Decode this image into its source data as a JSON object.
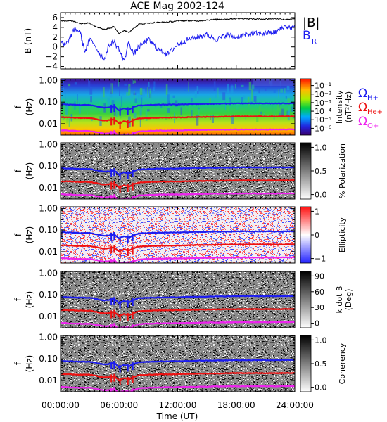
{
  "chart_data": {
    "type": "spectrogram",
    "title": "ACE Mag 2002-124",
    "xlabel": "Time (UT)",
    "x_ticks": [
      "00:00:00",
      "06:00:00",
      "12:00:00",
      "18:00:00",
      "24:00:00"
    ],
    "x_range_hours": [
      0,
      24
    ],
    "top_panel": {
      "type": "line",
      "ylabel": "B (nT)",
      "ylim": [
        -4.5,
        7
      ],
      "y_ticks": [
        "6",
        "4",
        "2",
        "0",
        "−2",
        "−4"
      ],
      "legend": [
        "|B|",
        "B",
        "R"
      ],
      "series": [
        {
          "name": "|B|",
          "color": "#000000",
          "x": [
            0,
            1,
            2,
            3,
            3.5,
            4,
            4.5,
            5,
            5.5,
            6,
            6.5,
            7,
            7.5,
            8,
            9,
            10,
            11,
            12,
            13,
            14,
            15,
            16,
            17,
            18,
            19,
            20,
            21,
            22,
            23,
            24
          ],
          "y": [
            5.3,
            5.4,
            4.8,
            4.9,
            4.3,
            3.9,
            3.6,
            3.8,
            4.2,
            2.6,
            3.4,
            3.0,
            3.8,
            4.6,
            4.9,
            5.0,
            5.1,
            5.3,
            5.4,
            5.3,
            5.5,
            5.6,
            5.7,
            5.8,
            5.8,
            5.7,
            5.7,
            5.8,
            5.6,
            5.8
          ]
        },
        {
          "name": "B_R",
          "color": "#1c1cf0",
          "x": [
            0,
            0.5,
            1,
            1.5,
            2,
            2.5,
            3,
            3.5,
            4,
            4.5,
            5,
            5.5,
            6,
            6.5,
            7,
            7.5,
            8,
            9,
            10,
            11,
            12,
            13,
            14,
            15,
            16,
            17,
            18,
            19,
            20,
            21,
            22,
            23,
            24
          ],
          "y": [
            1.0,
            0.2,
            2.0,
            3.8,
            3.0,
            -1.0,
            1.5,
            0.5,
            -1.5,
            -2.5,
            0.5,
            1.0,
            -0.5,
            -3.0,
            1.0,
            -1.5,
            0.0,
            1.5,
            -0.5,
            -1.5,
            0.5,
            1.5,
            2.0,
            2.5,
            1.5,
            2.5,
            2.0,
            2.5,
            2.7,
            2.8,
            3.0,
            4.2,
            3.8
          ]
        }
      ]
    },
    "spectral_panels": [
      {
        "name": "Intensity",
        "colorbar_title": "Intensity (nT²/Hz)",
        "colorbar_ticks": [
          "10⁻¹",
          "10⁻²",
          "10⁻³",
          "10⁻⁴",
          "10⁻⁵",
          "10⁻⁶"
        ],
        "colormap": "rainbow"
      },
      {
        "name": "% Polarization",
        "colorbar_title": "% Polarization",
        "colorbar_ticks": [
          "1.0",
          "0.5",
          "0.0"
        ],
        "colormap": "grayscale"
      },
      {
        "name": "Ellipticity",
        "colorbar_title": "Ellipticity",
        "colorbar_ticks": [
          "1",
          "0",
          "−1"
        ],
        "colormap": "blue-white-red"
      },
      {
        "name": "k dot B",
        "colorbar_title": "k dot B (Deg)",
        "colorbar_ticks": [
          "90",
          "60",
          "30",
          "0"
        ],
        "colormap": "grayscale"
      },
      {
        "name": "Coherency",
        "colorbar_title": "Coherency",
        "colorbar_ticks": [
          "1.0",
          "0.5",
          "0.0"
        ],
        "colormap": "grayscale"
      }
    ],
    "freq_axis": {
      "ylabel": "f (Hz)",
      "scale": "log",
      "ylim": [
        0.003,
        1.2
      ],
      "y_ticks": [
        "1.00",
        "0.10",
        "0.01"
      ]
    },
    "gyrofrequency_legend": {
      "h": "Ω H+",
      "he": "Ω He+",
      "o": "Ω O+"
    },
    "gyro_lines": [
      {
        "name": "Ω H+",
        "color": "#1c1cf0",
        "x": [
          0,
          2,
          3,
          4,
          4.5,
          5,
          5.5,
          6,
          6.5,
          7,
          7.5,
          8,
          10,
          12,
          14,
          16,
          18,
          20,
          22,
          24
        ],
        "y": [
          0.08,
          0.074,
          0.074,
          0.06,
          0.055,
          0.058,
          0.064,
          0.04,
          0.052,
          0.045,
          0.058,
          0.07,
          0.076,
          0.078,
          0.082,
          0.084,
          0.087,
          0.087,
          0.087,
          0.088
        ]
      },
      {
        "name": "Ω He+",
        "color": "#ee1111",
        "x": [
          0,
          2,
          3,
          4,
          4.5,
          5,
          5.5,
          6,
          6.5,
          7,
          7.5,
          8,
          10,
          12,
          14,
          16,
          18,
          20,
          22,
          24
        ],
        "y": [
          0.02,
          0.0185,
          0.0185,
          0.015,
          0.0138,
          0.0145,
          0.016,
          0.01,
          0.013,
          0.0112,
          0.0145,
          0.0175,
          0.019,
          0.0195,
          0.0205,
          0.021,
          0.0218,
          0.0218,
          0.0218,
          0.022
        ]
      },
      {
        "name": "Ω O+",
        "color": "#ee22ee",
        "x": [
          0,
          2,
          3,
          4,
          4.5,
          5,
          5.5,
          6,
          6.5,
          7,
          7.5,
          8,
          10,
          12,
          14,
          16,
          18,
          20,
          22,
          24
        ],
        "y": [
          0.005,
          0.0046,
          0.0046,
          0.0038,
          0.0035,
          0.0036,
          0.004,
          0.0026,
          0.0033,
          0.0028,
          0.0036,
          0.0044,
          0.0048,
          0.0049,
          0.0051,
          0.0053,
          0.0054,
          0.0054,
          0.0054,
          0.0055
        ]
      }
    ]
  }
}
